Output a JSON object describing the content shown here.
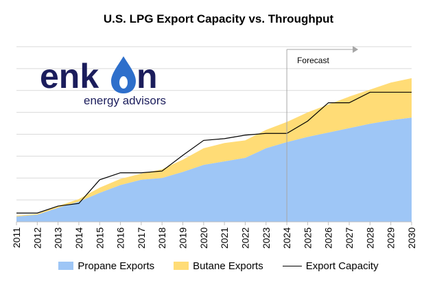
{
  "chart_data": {
    "type": "area",
    "title": "U.S. LPG Export Capacity vs. Throughput",
    "categories": [
      "2011",
      "2012",
      "2013",
      "2014",
      "2015",
      "2016",
      "2017",
      "2018",
      "2019",
      "2020",
      "2021",
      "2022",
      "2023",
      "2024",
      "2025",
      "2026",
      "2027",
      "2028",
      "2029",
      "2030"
    ],
    "ylim": [
      0,
      100
    ],
    "grid": true,
    "y_tick_labels": false,
    "stacked": true,
    "series": [
      {
        "name": "Propane Exports",
        "kind": "area",
        "color": "#9ec6f6",
        "values": [
          3.0,
          4.0,
          8.0,
          11.5,
          16.5,
          21.0,
          24.0,
          25.0,
          28.5,
          32.5,
          34.5,
          36.5,
          42.0,
          45.5,
          48.5,
          51.0,
          53.5,
          56.0,
          58.0,
          59.5
        ]
      },
      {
        "name": "Butane Exports",
        "kind": "area",
        "color": "#ffdc76",
        "values": [
          0.5,
          0.5,
          1.0,
          1.5,
          3.0,
          3.5,
          3.5,
          5.0,
          7.0,
          9.5,
          10.5,
          10.0,
          10.5,
          11.5,
          14.0,
          16.0,
          18.0,
          19.5,
          21.5,
          22.5
        ]
      },
      {
        "name": "Export Capacity",
        "kind": "line",
        "color": "#000000",
        "values": [
          5.0,
          5.0,
          9.0,
          10.5,
          24.0,
          28.0,
          28.0,
          29.0,
          38.0,
          46.5,
          47.5,
          49.5,
          50.5,
          50.5,
          57.5,
          68.0,
          68.0,
          74.0,
          74.0,
          74.0
        ]
      }
    ],
    "annotations": [
      {
        "text": "Forecast",
        "at": "2024",
        "arrow": "right"
      }
    ],
    "legend_position": "bottom"
  },
  "logo": {
    "word_left": "enk",
    "word_right": "n",
    "tagline": "energy advisors",
    "flame_color": "#2e6fcb"
  }
}
